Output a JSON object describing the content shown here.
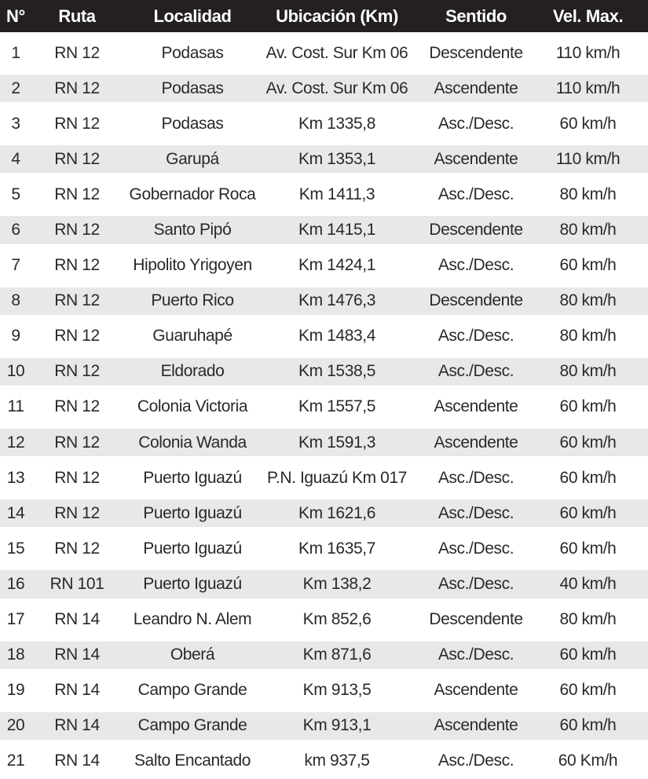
{
  "colors": {
    "header_bg": "#242021",
    "header_text": "#ffffff",
    "row_alt": "#e9e8e8",
    "row_bg": "#ffffff",
    "text": "#2b2829"
  },
  "table": {
    "columns": [
      {
        "key": "n",
        "label": "N°"
      },
      {
        "key": "ruta",
        "label": "Ruta"
      },
      {
        "key": "localidad",
        "label": "Localidad"
      },
      {
        "key": "ubicacion",
        "label": "Ubicación (Km)"
      },
      {
        "key": "sentido",
        "label": "Sentido"
      },
      {
        "key": "vel",
        "label": "Vel. Max."
      }
    ],
    "rows": [
      {
        "n": "1",
        "ruta": "RN 12",
        "localidad": "Podasas",
        "ubicacion": "Av. Cost. Sur Km 06",
        "sentido": "Descendente",
        "vel": "110 km/h"
      },
      {
        "n": "2",
        "ruta": "RN 12",
        "localidad": "Podasas",
        "ubicacion": "Av. Cost. Sur Km 06",
        "sentido": "Ascendente",
        "vel": "110 km/h"
      },
      {
        "n": "3",
        "ruta": "RN 12",
        "localidad": "Podasas",
        "ubicacion": "Km 1335,8",
        "sentido": "Asc./Desc.",
        "vel": "60 km/h"
      },
      {
        "n": "4",
        "ruta": "RN 12",
        "localidad": "Garupá",
        "ubicacion": "Km 1353,1",
        "sentido": "Ascendente",
        "vel": "110 km/h"
      },
      {
        "n": "5",
        "ruta": "RN 12",
        "localidad": "Gobernador Roca",
        "ubicacion": "Km 1411,3",
        "sentido": "Asc./Desc.",
        "vel": "80 km/h"
      },
      {
        "n": "6",
        "ruta": "RN 12",
        "localidad": "Santo Pipó",
        "ubicacion": "Km 1415,1",
        "sentido": "Descendente",
        "vel": "80 km/h"
      },
      {
        "n": "7",
        "ruta": "RN 12",
        "localidad": "Hipolito Yrigoyen",
        "ubicacion": "Km 1424,1",
        "sentido": "Asc./Desc.",
        "vel": "60 km/h"
      },
      {
        "n": "8",
        "ruta": "RN 12",
        "localidad": "Puerto Rico",
        "ubicacion": "Km 1476,3",
        "sentido": "Descendente",
        "vel": "80 km/h"
      },
      {
        "n": "9",
        "ruta": "RN 12",
        "localidad": "Guaruhapé",
        "ubicacion": "Km 1483,4",
        "sentido": "Asc./Desc.",
        "vel": "80 km/h"
      },
      {
        "n": "10",
        "ruta": "RN 12",
        "localidad": "Eldorado",
        "ubicacion": "Km 1538,5",
        "sentido": "Asc./Desc.",
        "vel": "80 km/h"
      },
      {
        "n": "11",
        "ruta": "RN 12",
        "localidad": "Colonia Victoria",
        "ubicacion": "Km 1557,5",
        "sentido": "Ascendente",
        "vel": "60 km/h"
      },
      {
        "n": "12",
        "ruta": "RN 12",
        "localidad": "Colonia Wanda",
        "ubicacion": "Km 1591,3",
        "sentido": "Ascendente",
        "vel": "60 km/h"
      },
      {
        "n": "13",
        "ruta": "RN 12",
        "localidad": "Puerto Iguazú",
        "ubicacion": "P.N. Iguazú Km 017",
        "sentido": "Asc./Desc.",
        "vel": "60 km/h"
      },
      {
        "n": "14",
        "ruta": "RN 12",
        "localidad": "Puerto Iguazú",
        "ubicacion": "Km 1621,6",
        "sentido": "Asc./Desc.",
        "vel": "60 km/h"
      },
      {
        "n": "15",
        "ruta": "RN 12",
        "localidad": "Puerto Iguazú",
        "ubicacion": "Km 1635,7",
        "sentido": "Asc./Desc.",
        "vel": "60 km/h"
      },
      {
        "n": "16",
        "ruta": "RN 101",
        "localidad": "Puerto Iguazú",
        "ubicacion": "Km 138,2",
        "sentido": "Asc./Desc.",
        "vel": "40 km/h"
      },
      {
        "n": "17",
        "ruta": "RN 14",
        "localidad": "Leandro N. Alem",
        "ubicacion": "Km 852,6",
        "sentido": "Descendente",
        "vel": "80 km/h"
      },
      {
        "n": "18",
        "ruta": "RN 14",
        "localidad": "Oberá",
        "ubicacion": "Km 871,6",
        "sentido": "Asc./Desc.",
        "vel": "60 km/h"
      },
      {
        "n": "19",
        "ruta": "RN 14",
        "localidad": "Campo Grande",
        "ubicacion": "Km 913,5",
        "sentido": "Ascendente",
        "vel": "60 km/h"
      },
      {
        "n": "20",
        "ruta": "RN 14",
        "localidad": "Campo Grande",
        "ubicacion": "Km 913,1",
        "sentido": "Ascendente",
        "vel": "60 km/h"
      },
      {
        "n": "21",
        "ruta": "RN 14",
        "localidad": "Salto Encantado",
        "ubicacion": "km 937,5",
        "sentido": "Asc./Desc.",
        "vel": "60 Km/h"
      }
    ]
  }
}
